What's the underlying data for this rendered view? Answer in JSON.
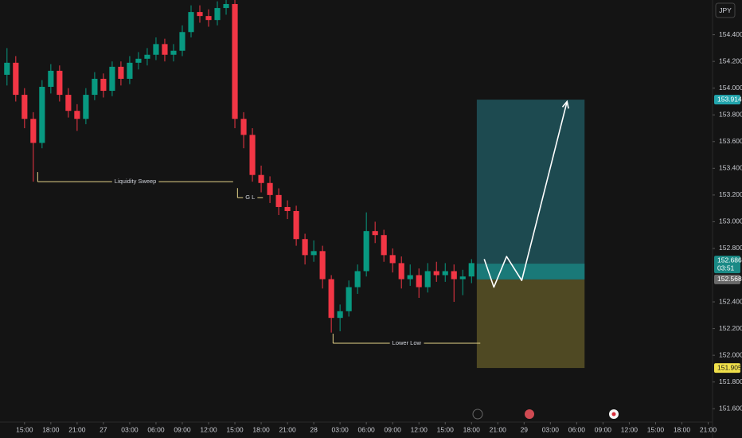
{
  "chart_data": {
    "type": "candlestick",
    "currency": "JPY",
    "up_color": "#089981",
    "down_color": "#f23645",
    "x": [
      -2,
      -1,
      0,
      1,
      2,
      3,
      4,
      5,
      6,
      7,
      8,
      9,
      10,
      11,
      12,
      13,
      14,
      15,
      16,
      17,
      18,
      19,
      20,
      21,
      22,
      23,
      24,
      25,
      26,
      27,
      28,
      29,
      30,
      31,
      32,
      33,
      34,
      35,
      36,
      37,
      38,
      39,
      40,
      41,
      42,
      43,
      44,
      45,
      46,
      47,
      48,
      49,
      50,
      51
    ],
    "open": [
      154.1,
      154.19,
      153.95,
      153.77,
      153.59,
      154.01,
      154.13,
      153.95,
      153.83,
      153.77,
      153.95,
      154.07,
      153.98,
      154.16,
      154.07,
      154.19,
      154.22,
      154.25,
      154.33,
      154.25,
      154.28,
      154.42,
      154.57,
      154.54,
      154.51,
      154.6,
      154.63,
      153.77,
      153.65,
      153.35,
      153.29,
      153.2,
      153.11,
      153.08,
      152.87,
      152.75,
      152.78,
      152.57,
      152.28,
      152.33,
      152.51,
      152.63,
      152.93,
      152.9,
      152.75,
      152.69,
      152.57,
      152.6,
      152.51,
      152.63,
      152.6,
      152.63,
      152.57,
      152.59
    ],
    "high": [
      154.3,
      154.24,
      154.0,
      153.82,
      154.06,
      154.18,
      154.17,
      154.0,
      153.88,
      154.0,
      154.12,
      154.11,
      154.2,
      154.2,
      154.24,
      154.27,
      154.3,
      154.38,
      154.37,
      154.33,
      154.47,
      154.62,
      154.62,
      154.59,
      154.65,
      154.66,
      154.66,
      153.82,
      153.7,
      153.42,
      153.34,
      153.25,
      153.16,
      153.12,
      152.91,
      152.86,
      152.82,
      152.6,
      152.38,
      152.56,
      152.68,
      153.07,
      153.0,
      152.94,
      152.8,
      152.74,
      152.68,
      152.65,
      152.69,
      152.7,
      152.69,
      152.68,
      152.64,
      152.72
    ],
    "low": [
      154.02,
      153.9,
      153.7,
      153.3,
      153.55,
      153.96,
      153.9,
      153.78,
      153.68,
      153.73,
      153.91,
      153.93,
      153.94,
      154.02,
      154.03,
      154.14,
      154.17,
      154.21,
      154.2,
      154.2,
      154.24,
      154.38,
      154.49,
      154.46,
      154.47,
      154.55,
      153.7,
      153.55,
      153.3,
      153.22,
      153.14,
      153.05,
      153.02,
      152.82,
      152.68,
      152.7,
      152.5,
      152.17,
      152.18,
      152.29,
      152.46,
      152.59,
      152.84,
      152.7,
      152.62,
      152.5,
      152.52,
      152.43,
      152.47,
      152.55,
      152.55,
      152.4,
      152.45,
      152.54
    ],
    "close": [
      154.19,
      153.95,
      153.77,
      153.59,
      154.01,
      154.13,
      153.95,
      153.83,
      153.77,
      153.95,
      154.07,
      153.98,
      154.16,
      154.07,
      154.19,
      154.22,
      154.25,
      154.33,
      154.25,
      154.28,
      154.42,
      154.57,
      154.54,
      154.51,
      154.6,
      154.63,
      153.77,
      153.65,
      153.35,
      153.29,
      153.2,
      153.11,
      153.08,
      152.87,
      152.75,
      152.78,
      152.57,
      152.28,
      152.33,
      152.51,
      152.63,
      152.93,
      152.9,
      152.75,
      152.69,
      152.57,
      152.6,
      152.51,
      152.63,
      152.6,
      152.63,
      152.57,
      152.59,
      152.69
    ],
    "xlim": [
      -2.8,
      78.5
    ],
    "xticks": [
      {
        "value": 0,
        "label": "15:00"
      },
      {
        "value": 3,
        "label": "18:00"
      },
      {
        "value": 6,
        "label": "21:00"
      },
      {
        "value": 9,
        "label": "27"
      },
      {
        "value": 12,
        "label": "03:00"
      },
      {
        "value": 15,
        "label": "06:00"
      },
      {
        "value": 18,
        "label": "09:00"
      },
      {
        "value": 21,
        "label": "12:00"
      },
      {
        "value": 24,
        "label": "15:00"
      },
      {
        "value": 27,
        "label": "18:00"
      },
      {
        "value": 30,
        "label": "21:00"
      },
      {
        "value": 33,
        "label": "28"
      },
      {
        "value": 36,
        "label": "03:00"
      },
      {
        "value": 39,
        "label": "06:00"
      },
      {
        "value": 42,
        "label": "09:00"
      },
      {
        "value": 45,
        "label": "12:00"
      },
      {
        "value": 48,
        "label": "15:00"
      },
      {
        "value": 51,
        "label": "18:00"
      },
      {
        "value": 54,
        "label": "21:00"
      },
      {
        "value": 57,
        "label": "29"
      },
      {
        "value": 60,
        "label": "03:00"
      },
      {
        "value": 63,
        "label": "06:00"
      },
      {
        "value": 66,
        "label": "09:00"
      },
      {
        "value": 69,
        "label": "12:00"
      },
      {
        "value": 72,
        "label": "15:00"
      },
      {
        "value": 75,
        "label": "18:00"
      },
      {
        "value": 78,
        "label": "21:00"
      }
    ],
    "ylim": [
      151.5,
      154.66
    ],
    "yticks": [
      {
        "value": 154.4,
        "label": "154.400"
      },
      {
        "value": 154.2,
        "label": "154.200"
      },
      {
        "value": 154.0,
        "label": "154.000"
      },
      {
        "value": 153.8,
        "label": "153.800"
      },
      {
        "value": 153.6,
        "label": "153.600"
      },
      {
        "value": 153.4,
        "label": "153.400"
      },
      {
        "value": 153.2,
        "label": "153.200"
      },
      {
        "value": 153.0,
        "label": "153.000"
      },
      {
        "value": 152.8,
        "label": "152.800"
      },
      {
        "value": 152.4,
        "label": "152.400"
      },
      {
        "value": 152.2,
        "label": "152.200"
      },
      {
        "value": 152.0,
        "label": "152.000"
      },
      {
        "value": 151.8,
        "label": "151.800"
      },
      {
        "value": 151.6,
        "label": "151.600"
      }
    ],
    "annotations": [
      {
        "label": "Liquidity Sweep",
        "price": 153.3,
        "x_start": 1.5,
        "x_end": 23.8,
        "color": "#e6d48a"
      },
      {
        "label": "G L",
        "price": 153.18,
        "x_start": 24.3,
        "x_end": 27.2,
        "color": "#e6d48a"
      },
      {
        "label": "Lower Low",
        "price": 152.09,
        "x_start": 35.2,
        "x_end": 52,
        "color": "#e6d48a"
      }
    ],
    "position": {
      "entry": 152.568,
      "target": 153.914,
      "stop": 151.905,
      "x_start": 51.6,
      "x_end": 63.9,
      "profit_color": "#1d4a50",
      "loss_color": "#4f4923",
      "target_color": "#22a5ad",
      "entry_color": "#6a6a6a",
      "stop_color": "#f0e04a"
    },
    "current_price": {
      "value": 152.686,
      "countdown": "03:51",
      "color": "#1a8a86"
    },
    "projection": {
      "x": [
        52.45,
        53.55,
        55.0,
        56.73,
        61.9
      ],
      "y": [
        152.72,
        152.51,
        152.74,
        152.56,
        153.9
      ],
      "color": "#ffffff"
    }
  }
}
